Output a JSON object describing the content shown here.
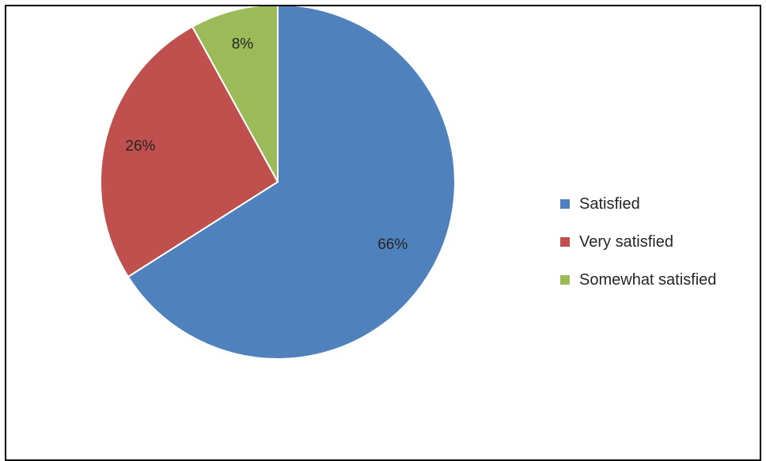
{
  "chart_data": {
    "type": "pie",
    "categories": [
      "Satisfied",
      "Very satisfied",
      "Somewhat satisfied"
    ],
    "values": [
      66,
      26,
      8
    ],
    "labels": [
      "66%",
      "26%",
      "8%"
    ],
    "colors": [
      "#4F81BD",
      "#C0504D",
      "#9BBB59"
    ],
    "legend": {
      "position": "right",
      "items": [
        {
          "label": "Satisfied",
          "color": "#4F81BD"
        },
        {
          "label": "Very satisfied",
          "color": "#C0504D"
        },
        {
          "label": "Somewhat satisfied",
          "color": "#9BBB59"
        }
      ]
    }
  }
}
